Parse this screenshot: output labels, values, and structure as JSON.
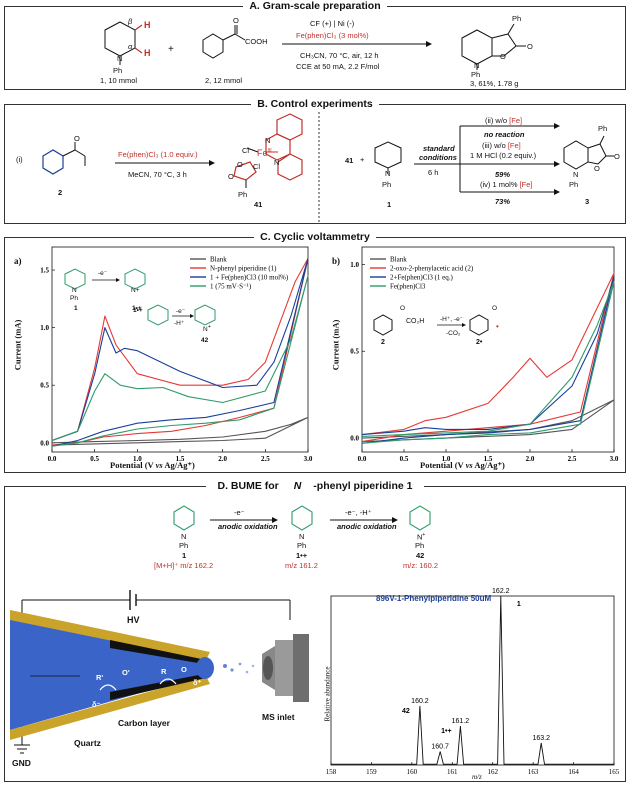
{
  "sectionA": {
    "title": "A. Gram-scale preparation",
    "label_alpha": "α",
    "label_beta": "β",
    "H1": "H",
    "H2": "H",
    "N": "N",
    "Ph": "Ph",
    "cmpd1": "1, 10 mmol",
    "plus": "+",
    "cmpd2": "2, 12 mmol",
    "cond_top": "CF (+) | Ni (-)",
    "cond_cat": "Fe(phen)Cl₃ (3 mol%)",
    "cond_solvent": "CH₃CN, 70 °C, air, 12 h",
    "cond_cce": "CCE at 50 mA, 2.2 F/mol",
    "product": "3, 61%, 1.78 g",
    "prod_Ph": "Ph",
    "prod_O": "O",
    "prod_carbonyl": "O",
    "prod_N": "N",
    "prod_NPh": "Ph",
    "acid_O": "O",
    "acid_COOH": "COOH"
  },
  "sectionB": {
    "title": "B. Control experiments",
    "i_label": "(i)",
    "reagent": "Fe(phen)Cl₃ (1.0 equiv.)",
    "conditions": "MeCN, 70 °C, 3 h",
    "cmpd2": "2",
    "complex": "41",
    "complex_Cl1": "Cl",
    "complex_Cl2": "Cl",
    "complex_Fe": "Fe",
    "complex_Fe_ox": "III",
    "complex_N1": "N",
    "complex_N2": "N",
    "complex_O1": "O",
    "complex_O2": "O",
    "complex_Ph": "Ph",
    "start": "41",
    "plus": "+",
    "piperidine_N": "N",
    "piperidine_Ph": "Ph",
    "piperidine": "1",
    "std1": "standard",
    "std2": "conditions",
    "time": "6 h",
    "ii": "(ii) w/o ",
    "ii_fe": "[Fe]",
    "no_reaction": "no reaction",
    "iii": "(iii) w/o ",
    "iii_fe": "[Fe]",
    "hcl": "1 M HCl (0.2 equiv.)",
    "yield1": "59%",
    "iv": "(iv) 1 mol% ",
    "iv_fe": "[Fe]",
    "yield2": "73%",
    "product": "3",
    "prod_Ph": "Ph",
    "prod_O": "O",
    "prod_carbonyl": "O",
    "prod_N": "N",
    "prod_NPh": "Ph",
    "acid_O": "O"
  },
  "sectionC": {
    "title": "C. Cyclic voltammetry",
    "panelA_label": "a)",
    "panelB_label": "b)",
    "ylabel": "Current (mA)",
    "xlabel_pre": "Potential (V ",
    "xlabel_vs": "vs",
    "xlabel_post": " Ag/Ag⁺)",
    "schemeA": {
      "e1": "-e⁻",
      "e2a": "-e⁻",
      "e2b": "-H⁺",
      "lbl1": "1",
      "lbl1rad": "1•+",
      "lbl1rad2": "1•+",
      "lbl42": "42",
      "N": "N",
      "Ph": "Ph",
      "Nplus": "N+",
      "Nplus_eq": "N",
      "plus_eq": "+"
    },
    "schemeB": {
      "cooh": "CO₂H",
      "lbl2": "2",
      "lbl2rad": "2•",
      "step1": "-H⁺, -e⁻",
      "step2": "-CO₂",
      "O1": "O",
      "O2": "O",
      "dot": "•"
    }
  },
  "sectionD": {
    "title_pre": "D. BUME for ",
    "title_italic": "N",
    "title_post": "-phenyl piperidine 1",
    "scheme": {
      "e1": "-e⁻",
      "ox1": "anodic oxidation",
      "e2": "-e⁻, -H⁺",
      "ox2": "anodic oxidation",
      "c1": "1",
      "c1mz": "[M+H]⁺ m/z 162.2",
      "c2": "1•+",
      "c2mz": "m/z 161.2",
      "c3": "42",
      "c3mz": "m/z: 160.2",
      "N": "N",
      "Ph": "Ph",
      "Nplus": "N",
      "plus": "+"
    },
    "apparatus": {
      "hv": "HV",
      "gnd": "GND",
      "carbon": "Carbon layer",
      "quartz": "Quartz",
      "msinlet": "MS inlet",
      "R1": "R'",
      "O1": "O'",
      "R2": "R",
      "O2": "O",
      "dminus": "δ⁻",
      "dplus": "δ⁺"
    },
    "spectrum_title": "896V-1-Phenylpiperidine 50uM",
    "spectrum_ylabel": "Relative abundance",
    "spectrum_xlabel": "m/z"
  },
  "chart_data": [
    {
      "type": "line",
      "panel": "a",
      "xlabel": "Potential (V vs Ag/Ag+)",
      "ylabel": "Current (mA)",
      "xlim": [
        0.0,
        3.0
      ],
      "ylim": [
        -0.08,
        1.7
      ],
      "xticks": [
        "0.0",
        "0.5",
        "1.0",
        "1.5",
        "2.0",
        "2.5",
        "3.0"
      ],
      "yticks": [
        "0.0",
        "0.5",
        "1.0",
        "1.5"
      ],
      "legend_position": "top-right",
      "series": [
        {
          "name": "Blank",
          "color": "#555555",
          "forward": [
            [
              0,
              0.0
            ],
            [
              0.5,
              0.01
            ],
            [
              1.0,
              0.02
            ],
            [
              1.5,
              0.03
            ],
            [
              2.0,
              0.05
            ],
            [
              2.5,
              0.1
            ],
            [
              2.8,
              0.16
            ],
            [
              3.0,
              0.22
            ]
          ],
          "reverse": [
            [
              3.0,
              0.22
            ],
            [
              2.5,
              0.04
            ],
            [
              2.0,
              0.02
            ],
            [
              1.5,
              0.01
            ],
            [
              1.0,
              0.0
            ],
            [
              0.5,
              -0.01
            ],
            [
              0,
              -0.02
            ]
          ]
        },
        {
          "name": "N-phenyl piperidine (1)",
          "color": "#e53935",
          "forward": [
            [
              0,
              0.02
            ],
            [
              0.3,
              0.1
            ],
            [
              0.5,
              0.65
            ],
            [
              0.62,
              1.1
            ],
            [
              0.75,
              0.85
            ],
            [
              1.0,
              0.6
            ],
            [
              1.5,
              0.5
            ],
            [
              2.0,
              0.5
            ],
            [
              2.3,
              0.55
            ],
            [
              2.5,
              0.7
            ],
            [
              2.7,
              1.1
            ],
            [
              2.85,
              1.4
            ],
            [
              3.0,
              1.6
            ]
          ],
          "reverse": [
            [
              3.0,
              1.6
            ],
            [
              2.6,
              0.3
            ],
            [
              2.2,
              0.22
            ],
            [
              1.8,
              0.15
            ],
            [
              1.4,
              0.1
            ],
            [
              1.0,
              0.08
            ],
            [
              0.6,
              0.05
            ],
            [
              0.3,
              0.0
            ],
            [
              0,
              -0.02
            ]
          ]
        },
        {
          "name": "1 + Fe(phen)Cl3 (10 mol%)",
          "color": "#1b3f99",
          "forward": [
            [
              0,
              0.02
            ],
            [
              0.3,
              0.1
            ],
            [
              0.5,
              0.6
            ],
            [
              0.62,
              1.0
            ],
            [
              0.75,
              0.78
            ],
            [
              0.85,
              0.82
            ],
            [
              1.0,
              0.8
            ],
            [
              1.5,
              0.62
            ],
            [
              2.0,
              0.48
            ],
            [
              2.4,
              0.5
            ],
            [
              2.6,
              0.7
            ],
            [
              2.8,
              1.1
            ],
            [
              3.0,
              1.6
            ]
          ],
          "reverse": [
            [
              3.0,
              1.6
            ],
            [
              2.6,
              0.35
            ],
            [
              2.2,
              0.28
            ],
            [
              1.8,
              0.22
            ],
            [
              1.4,
              0.2
            ],
            [
              1.0,
              0.17
            ],
            [
              0.6,
              0.1
            ],
            [
              0.3,
              0.02
            ],
            [
              0,
              -0.03
            ]
          ]
        },
        {
          "name": "1 (75 mV·S⁻¹)",
          "color": "#2e9b6a",
          "forward": [
            [
              0,
              0.02
            ],
            [
              0.3,
              0.1
            ],
            [
              0.5,
              0.45
            ],
            [
              0.62,
              0.6
            ],
            [
              0.8,
              0.5
            ],
            [
              1.0,
              0.47
            ],
            [
              1.3,
              0.48
            ],
            [
              1.6,
              0.4
            ],
            [
              2.0,
              0.35
            ],
            [
              2.5,
              0.45
            ],
            [
              2.8,
              0.9
            ],
            [
              3.0,
              1.45
            ]
          ],
          "reverse": [
            [
              3.0,
              1.45
            ],
            [
              2.6,
              0.3
            ],
            [
              2.2,
              0.2
            ],
            [
              1.8,
              0.17
            ],
            [
              1.4,
              0.15
            ],
            [
              1.0,
              0.12
            ],
            [
              0.6,
              0.06
            ],
            [
              0.3,
              0.0
            ],
            [
              0,
              -0.03
            ]
          ]
        }
      ]
    },
    {
      "type": "line",
      "panel": "b",
      "xlabel": "Potential (V vs Ag/Ag+)",
      "ylabel": "Current (mA)",
      "xlim": [
        0.0,
        3.0
      ],
      "ylim": [
        -0.08,
        1.1
      ],
      "xticks": [
        "0.0",
        "0.5",
        "1.0",
        "1.5",
        "2.0",
        "2.5",
        "3.0"
      ],
      "yticks": [
        "0.0",
        "0.5",
        "1.0"
      ],
      "legend_position": "top-left",
      "series": [
        {
          "name": "Blank",
          "color": "#555555",
          "forward": [
            [
              0,
              0.0
            ],
            [
              1.0,
              0.02
            ],
            [
              2.0,
              0.05
            ],
            [
              2.5,
              0.1
            ],
            [
              3.0,
              0.22
            ]
          ],
          "reverse": [
            [
              3.0,
              0.22
            ],
            [
              2.5,
              0.05
            ],
            [
              2.0,
              0.02
            ],
            [
              1.0,
              0.0
            ],
            [
              0,
              -0.02
            ]
          ]
        },
        {
          "name": "2-oxo-2-phenylacetic acid (2)",
          "color": "#e53935",
          "forward": [
            [
              0,
              0.02
            ],
            [
              0.5,
              0.05
            ],
            [
              0.75,
              0.1
            ],
            [
              1.0,
              0.12
            ],
            [
              1.5,
              0.2
            ],
            [
              1.8,
              0.35
            ],
            [
              2.0,
              0.46
            ],
            [
              2.2,
              0.35
            ],
            [
              2.5,
              0.45
            ],
            [
              2.75,
              0.7
            ],
            [
              3.0,
              0.95
            ]
          ],
          "reverse": [
            [
              3.0,
              0.95
            ],
            [
              2.6,
              0.15
            ],
            [
              2.0,
              0.08
            ],
            [
              1.5,
              0.06
            ],
            [
              1.0,
              0.04
            ],
            [
              0.5,
              0.02
            ],
            [
              0,
              -0.02
            ]
          ]
        },
        {
          "name": "2+Fe(phen)Cl3 (1 eq.)",
          "color": "#1b3f99",
          "forward": [
            [
              0,
              0.02
            ],
            [
              0.5,
              0.04
            ],
            [
              0.75,
              0.06
            ],
            [
              1.0,
              0.05
            ],
            [
              1.5,
              0.05
            ],
            [
              2.0,
              0.08
            ],
            [
              2.5,
              0.3
            ],
            [
              2.8,
              0.6
            ],
            [
              3.0,
              0.93
            ]
          ],
          "reverse": [
            [
              3.0,
              0.93
            ],
            [
              2.6,
              0.1
            ],
            [
              2.0,
              0.05
            ],
            [
              1.5,
              0.03
            ],
            [
              1.0,
              0.02
            ],
            [
              0.5,
              0.0
            ],
            [
              0,
              -0.03
            ]
          ]
        },
        {
          "name": "Fe(phen)Cl3",
          "color": "#2e9b6a",
          "forward": [
            [
              0,
              0.01
            ],
            [
              0.5,
              0.02
            ],
            [
              1.0,
              0.03
            ],
            [
              1.5,
              0.04
            ],
            [
              2.0,
              0.08
            ],
            [
              2.5,
              0.35
            ],
            [
              2.8,
              0.65
            ],
            [
              3.0,
              0.9
            ]
          ],
          "reverse": [
            [
              3.0,
              0.9
            ],
            [
              2.6,
              0.08
            ],
            [
              2.0,
              0.03
            ],
            [
              1.5,
              0.02
            ],
            [
              1.0,
              0.0
            ],
            [
              0.5,
              -0.01
            ],
            [
              0,
              -0.03
            ]
          ]
        }
      ]
    },
    {
      "type": "line",
      "panel": "mass spectrum",
      "title": "896V-1-Phenylpiperidine 50uM",
      "xlabel": "m/z",
      "ylabel": "Relative abundance",
      "xlim": [
        158,
        165
      ],
      "ylim": [
        0,
        100
      ],
      "xticks": [
        "158",
        "159",
        "160",
        "161",
        "162",
        "163",
        "164",
        "165"
      ],
      "peaks": [
        {
          "mz": 160.2,
          "intensity": 35,
          "label": "160.2",
          "tag": "42"
        },
        {
          "mz": 160.7,
          "intensity": 8,
          "label": "160.7"
        },
        {
          "mz": 161.2,
          "intensity": 23,
          "label": "161.2",
          "tag": "1•+"
        },
        {
          "mz": 162.2,
          "intensity": 100,
          "label": "162.2",
          "tag": "1"
        },
        {
          "mz": 163.2,
          "intensity": 13,
          "label": "163.2"
        }
      ]
    }
  ]
}
